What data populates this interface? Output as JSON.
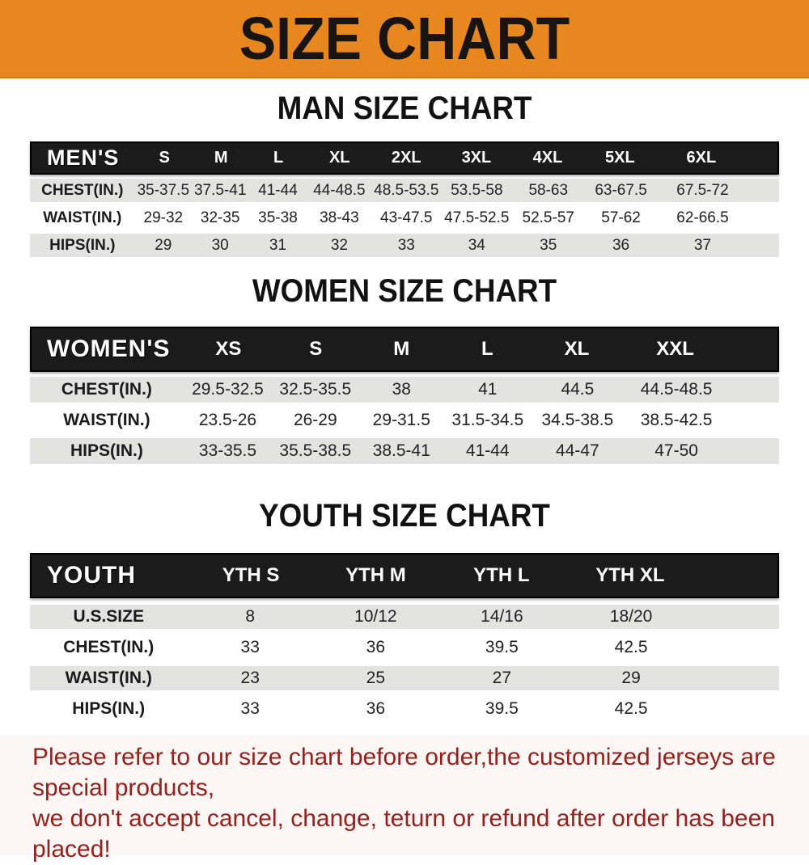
{
  "banner": {
    "title": "SIZE CHART",
    "bg_color": "#E8871E",
    "text_color": "#181411"
  },
  "colors": {
    "header_bar_bg": "#1B1B1B",
    "header_bar_text": "#FFFFFF",
    "row_alt_bg": "#E3E3E1",
    "row_white_bg": "#FFFFFF",
    "footer_text": "#97201C"
  },
  "chart_data": [
    {
      "type": "table",
      "title": "MAN SIZE CHART",
      "corner_label": "MEN'S",
      "columns": [
        "S",
        "M",
        "L",
        "XL",
        "2XL",
        "3XL",
        "4XL",
        "5XL",
        "6XL"
      ],
      "rows": [
        {
          "label": "CHEST(IN.)",
          "values": [
            "35-37.5",
            "37.5-41",
            "41-44",
            "44-48.5",
            "48.5-53.5",
            "53.5-58",
            "58-63",
            "63-67.5",
            "67.5-72"
          ]
        },
        {
          "label": "WAIST(IN.)",
          "values": [
            "29-32",
            "32-35",
            "35-38",
            "38-43",
            "43-47.5",
            "47.5-52.5",
            "52.5-57",
            "57-62",
            "62-66.5"
          ]
        },
        {
          "label": "HIPS(IN.)",
          "values": [
            "29",
            "30",
            "31",
            "32",
            "33",
            "34",
            "35",
            "36",
            "37"
          ]
        }
      ]
    },
    {
      "type": "table",
      "title": "WOMEN SIZE CHART",
      "corner_label": "WOMEN'S",
      "columns": [
        "XS",
        "S",
        "M",
        "L",
        "XL",
        "XXL"
      ],
      "rows": [
        {
          "label": "CHEST(IN.)",
          "values": [
            "29.5-32.5",
            "32.5-35.5",
            "38",
            "41",
            "44.5",
            "44.5-48.5"
          ]
        },
        {
          "label": "WAIST(IN.)",
          "values": [
            "23.5-26",
            "26-29",
            "29-31.5",
            "31.5-34.5",
            "34.5-38.5",
            "38.5-42.5"
          ]
        },
        {
          "label": "HIPS(IN.)",
          "values": [
            "33-35.5",
            "35.5-38.5",
            "38.5-41",
            "41-44",
            "44-47",
            "47-50"
          ]
        }
      ]
    },
    {
      "type": "table",
      "title": "YOUTH SIZE CHART",
      "corner_label": "YOUTH",
      "columns": [
        "YTH S",
        "YTH M",
        "YTH L",
        "YTH XL"
      ],
      "rows": [
        {
          "label": "U.S.SIZE",
          "values": [
            "8",
            "10/12",
            "14/16",
            "18/20"
          ]
        },
        {
          "label": "CHEST(IN.)",
          "values": [
            "33",
            "36",
            "39.5",
            "42.5"
          ]
        },
        {
          "label": "WAIST(IN.)",
          "values": [
            "23",
            "25",
            "27",
            "29"
          ]
        },
        {
          "label": "HIPS(IN.)",
          "values": [
            "33",
            "36",
            "39.5",
            "42.5"
          ]
        }
      ]
    }
  ],
  "footer": {
    "line1": "Please refer to our size chart before order,the customized jerseys are special products,",
    "line2": "we don't accept cancel, change, teturn or refund after order has been placed!"
  }
}
